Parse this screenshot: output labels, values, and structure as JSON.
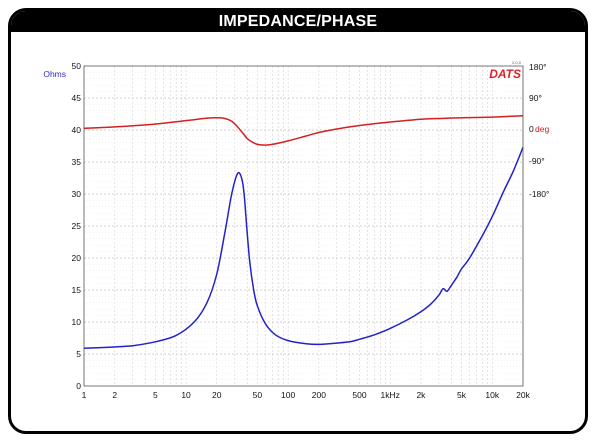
{
  "title": "IMPEDANCE/PHASE",
  "brand": {
    "name": "DATS",
    "version": "2.0.0"
  },
  "colors": {
    "impedance": "#2222cc",
    "phase": "#d42020",
    "grid": "#d2d2d2",
    "frame": "#000000"
  },
  "chart_data": {
    "type": "line",
    "x_scale": "log",
    "xlim": [
      1,
      20000
    ],
    "x_tick_values": [
      1,
      2,
      5,
      10,
      20,
      50,
      100,
      200,
      500,
      1000,
      2000,
      5000,
      10000,
      20000
    ],
    "x_tick_labels": [
      "1",
      "2",
      "5",
      "10",
      "20",
      "50",
      "100",
      "200",
      "500",
      "1kHz",
      "2k",
      "5k",
      "10k",
      "20k"
    ],
    "left_axis": {
      "unit_label": "Ohms",
      "ylim": [
        0,
        50
      ],
      "tick_values": [
        0,
        5,
        10,
        15,
        20,
        25,
        30,
        35,
        40,
        45,
        50
      ],
      "tick_labels": [
        "0",
        "5",
        "10",
        "15",
        "20",
        "25",
        "30",
        "35",
        "40",
        "45",
        "50"
      ]
    },
    "right_axis": {
      "unit_label": "deg",
      "tick_values": [
        180,
        90,
        0,
        -90,
        -180
      ],
      "tick_labels": [
        "180°",
        "90°",
        "0",
        "-90°",
        "-180°"
      ]
    },
    "grid": true,
    "series": [
      {
        "axis": "left",
        "color": "#2222cc",
        "x": [
          1,
          2,
          3,
          5,
          8,
          12,
          16,
          20,
          24,
          28,
          32,
          35,
          37,
          39,
          42,
          46,
          50,
          60,
          75,
          100,
          150,
          200,
          250,
          300,
          400,
          500,
          700,
          1000,
          1500,
          2000,
          2500,
          3000,
          3300,
          3600,
          4000,
          4500,
          5000,
          6000,
          8000,
          10000,
          13000,
          16000,
          20000
        ],
        "y": [
          5.9,
          6.1,
          6.3,
          6.9,
          7.9,
          10.0,
          13.0,
          17.5,
          24.0,
          30.0,
          33.2,
          32.5,
          30.0,
          25.5,
          19.5,
          15.0,
          12.5,
          9.7,
          8.0,
          7.1,
          6.6,
          6.5,
          6.6,
          6.7,
          6.9,
          7.3,
          8.0,
          9.0,
          10.4,
          11.6,
          12.8,
          14.2,
          15.2,
          14.8,
          15.8,
          17.0,
          18.3,
          20.0,
          23.5,
          26.5,
          30.5,
          33.5,
          37.3
        ]
      },
      {
        "axis": "right",
        "color": "#d42020",
        "x": [
          1,
          2,
          5,
          10,
          15,
          20,
          24,
          28,
          32,
          36,
          40,
          45,
          50,
          60,
          70,
          100,
          150,
          200,
          300,
          500,
          1000,
          2000,
          3000,
          5000,
          10000,
          20000
        ],
        "y": [
          2,
          6,
          14,
          24,
          30,
          32,
          30,
          22,
          6,
          -12,
          -28,
          -38,
          -44,
          -46,
          -44,
          -34,
          -20,
          -10,
          0,
          10,
          20,
          28,
          30,
          32,
          34,
          38
        ]
      }
    ]
  }
}
